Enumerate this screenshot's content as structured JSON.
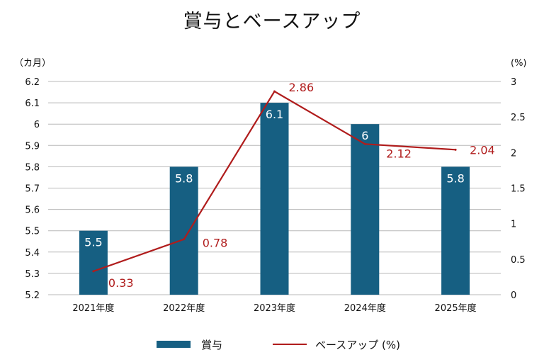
{
  "chart_data": {
    "type": "bar",
    "title": "賞与とベースアップ",
    "categories": [
      "2021年度",
      "2022年度",
      "2023年度",
      "2024年度",
      "2025年度"
    ],
    "series": [
      {
        "name": "賞与",
        "type": "bar",
        "axis": "left",
        "values": [
          5.5,
          5.8,
          6.1,
          6.0,
          5.8
        ],
        "value_labels": [
          "5.5",
          "5.8",
          "6.1",
          "6",
          "5.8"
        ],
        "color": "#165f82"
      },
      {
        "name": "ベースアップ (%)",
        "type": "line",
        "axis": "right",
        "values": [
          0.33,
          0.78,
          2.86,
          2.12,
          2.04
        ],
        "value_labels": [
          "0.33",
          "0.78",
          "2.86",
          "2.12",
          "2.04"
        ],
        "color": "#b01c1c"
      }
    ],
    "y_left": {
      "unit_label": "（カ月）",
      "range": [
        5.2,
        6.2
      ],
      "ticks": [
        "6.2",
        "6.1",
        "6",
        "5.9",
        "5.8",
        "5.7",
        "5.6",
        "5.5",
        "5.4",
        "5.3",
        "5.2"
      ]
    },
    "y_right": {
      "unit_label": "(%)",
      "range": [
        0,
        3
      ],
      "ticks": [
        "3",
        "2.5",
        "2",
        "1.5",
        "1",
        "0.5",
        "0"
      ]
    },
    "grid": true,
    "legend_position": "bottom"
  }
}
